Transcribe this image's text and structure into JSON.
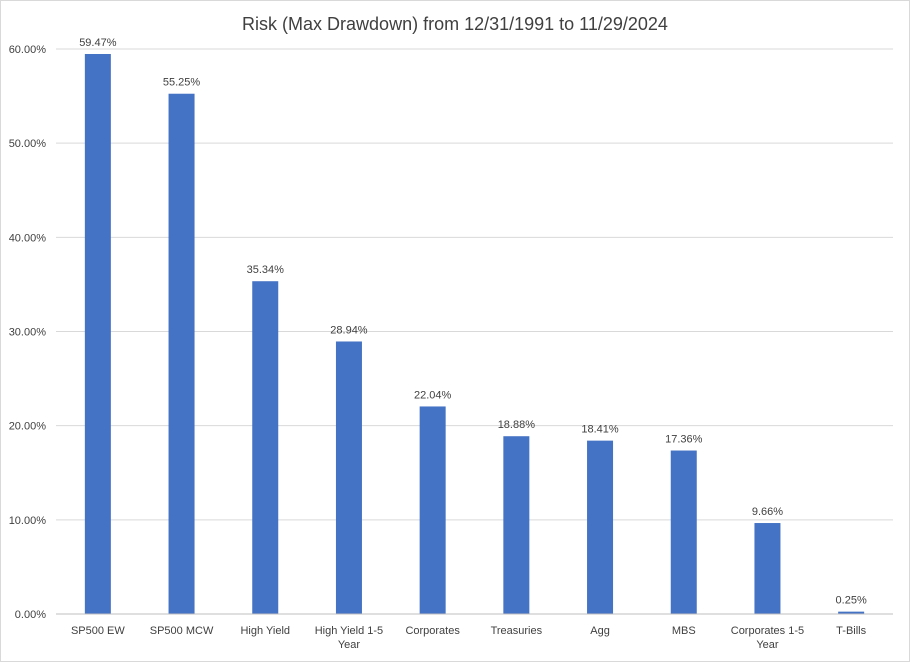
{
  "chart_data": {
    "type": "bar",
    "title": "Risk (Max Drawdown) from 12/31/1991 to 11/29/2024",
    "categories": [
      [
        "SP500 EW"
      ],
      [
        "SP500 MCW"
      ],
      [
        "High Yield"
      ],
      [
        "High Yield 1-5",
        "Year"
      ],
      [
        "Corporates"
      ],
      [
        "Treasuries"
      ],
      [
        "Agg"
      ],
      [
        "MBS"
      ],
      [
        "Corporates 1-5",
        "Year"
      ],
      [
        "T-Bills"
      ]
    ],
    "values": [
      59.47,
      55.25,
      35.34,
      28.94,
      22.04,
      18.88,
      18.41,
      17.36,
      9.66,
      0.25
    ],
    "data_labels": [
      "59.47%",
      "55.25%",
      "35.34%",
      "28.94%",
      "22.04%",
      "18.88%",
      "18.41%",
      "17.36%",
      "9.66%",
      "0.25%"
    ],
    "y_ticks": [
      {
        "value": 0,
        "label": "0.00%"
      },
      {
        "value": 10,
        "label": "10.00%"
      },
      {
        "value": 20,
        "label": "20.00%"
      },
      {
        "value": 30,
        "label": "30.00%"
      },
      {
        "value": 40,
        "label": "40.00%"
      },
      {
        "value": 50,
        "label": "50.00%"
      },
      {
        "value": 60,
        "label": "60.00%"
      }
    ],
    "ylim": [
      0,
      60
    ],
    "grid": true,
    "legend": "none",
    "bar_color": "#4472c4"
  }
}
